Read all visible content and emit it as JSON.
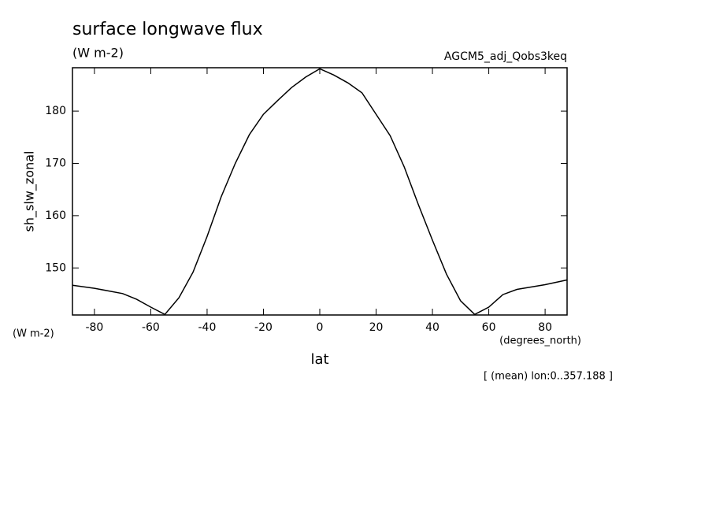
{
  "chart_data": {
    "type": "line",
    "title": "surface longwave flux",
    "units": "(W m-2)",
    "dataset": "AGCM5_adj_Qobs3keq",
    "y_label": "sh_slw_zonal",
    "y_units": "(W m-2)",
    "x_units": "(degrees_north)",
    "x_label": "lat",
    "note": "[ (mean) lon:0..357.188 ]",
    "xlim": [
      -87.8,
      87.8
    ],
    "ylim": [
      141,
      188.3
    ],
    "xticks": [
      -80,
      -60,
      -40,
      -20,
      0,
      20,
      40,
      60,
      80
    ],
    "yticks": [
      150,
      160,
      170,
      180
    ],
    "series": [
      {
        "name": "sh_slw_zonal",
        "color": "#000000",
        "x": [
          -87.8,
          -80,
          -70,
          -65,
          -60,
          -55,
          -50,
          -45,
          -40,
          -35,
          -30,
          -25,
          -20,
          -15,
          -10,
          -5,
          0,
          5,
          10,
          15,
          20,
          25,
          30,
          35,
          40,
          45,
          50,
          55,
          60,
          65,
          70,
          80,
          87.8
        ],
        "values": [
          146.7,
          146.1,
          145.1,
          144.0,
          142.5,
          141.1,
          144.3,
          149.2,
          156.0,
          163.6,
          170.0,
          175.5,
          179.4,
          182.0,
          184.5,
          186.5,
          188.1,
          186.9,
          185.4,
          183.5,
          179.4,
          175.3,
          169.3,
          162.1,
          155.3,
          148.8,
          143.7,
          141.1,
          142.5,
          144.9,
          145.9,
          146.8,
          147.7
        ]
      }
    ]
  }
}
